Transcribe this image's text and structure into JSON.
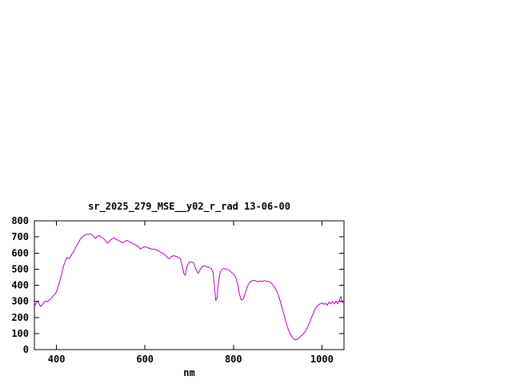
{
  "window": {
    "background": "#ffffff"
  },
  "chart_data": {
    "type": "line",
    "title": "sr_2025_279_MSE__y02_r_rad 13-06-00",
    "xlabel": "nm",
    "ylabel": "",
    "xlim": [
      350,
      1050
    ],
    "ylim": [
      0,
      800
    ],
    "x_ticks": [
      400,
      600,
      800,
      1000
    ],
    "y_ticks": [
      0,
      100,
      200,
      300,
      400,
      500,
      600,
      700,
      800
    ],
    "grid": false,
    "legend": "none",
    "line_color": "#bb00bb",
    "axis_color": "#000000",
    "series": [
      {
        "name": "sr_2025_279_MSE__y02_r_rad",
        "points": [
          [
            350,
            265
          ],
          [
            353,
            285
          ],
          [
            356,
            300
          ],
          [
            360,
            288
          ],
          [
            364,
            268
          ],
          [
            368,
            280
          ],
          [
            372,
            295
          ],
          [
            376,
            302
          ],
          [
            380,
            298
          ],
          [
            384,
            308
          ],
          [
            388,
            318
          ],
          [
            392,
            332
          ],
          [
            396,
            344
          ],
          [
            400,
            360
          ],
          [
            404,
            395
          ],
          [
            408,
            432
          ],
          [
            412,
            475
          ],
          [
            416,
            520
          ],
          [
            420,
            552
          ],
          [
            424,
            572
          ],
          [
            428,
            563
          ],
          [
            432,
            580
          ],
          [
            436,
            600
          ],
          [
            440,
            615
          ],
          [
            444,
            638
          ],
          [
            448,
            658
          ],
          [
            452,
            678
          ],
          [
            456,
            694
          ],
          [
            460,
            704
          ],
          [
            464,
            711
          ],
          [
            468,
            717
          ],
          [
            472,
            714
          ],
          [
            476,
            720
          ],
          [
            480,
            714
          ],
          [
            484,
            701
          ],
          [
            488,
            690
          ],
          [
            492,
            704
          ],
          [
            496,
            709
          ],
          [
            500,
            699
          ],
          [
            505,
            694
          ],
          [
            510,
            679
          ],
          [
            515,
            661
          ],
          [
            520,
            674
          ],
          [
            525,
            688
          ],
          [
            530,
            694
          ],
          [
            535,
            684
          ],
          [
            540,
            679
          ],
          [
            545,
            669
          ],
          [
            550,
            664
          ],
          [
            555,
            673
          ],
          [
            560,
            679
          ],
          [
            565,
            669
          ],
          [
            570,
            664
          ],
          [
            575,
            654
          ],
          [
            580,
            649
          ],
          [
            585,
            639
          ],
          [
            590,
            624
          ],
          [
            595,
            634
          ],
          [
            600,
            639
          ],
          [
            605,
            634
          ],
          [
            610,
            629
          ],
          [
            615,
            624
          ],
          [
            620,
            624
          ],
          [
            625,
            619
          ],
          [
            630,
            614
          ],
          [
            635,
            604
          ],
          [
            640,
            599
          ],
          [
            645,
            589
          ],
          [
            650,
            574
          ],
          [
            655,
            564
          ],
          [
            660,
            579
          ],
          [
            665,
            584
          ],
          [
            670,
            579
          ],
          [
            675,
            574
          ],
          [
            680,
            565
          ],
          [
            685,
            510
          ],
          [
            688,
            470
          ],
          [
            691,
            462
          ],
          [
            695,
            515
          ],
          [
            700,
            543
          ],
          [
            705,
            545
          ],
          [
            710,
            538
          ],
          [
            715,
            500
          ],
          [
            720,
            474
          ],
          [
            725,
            498
          ],
          [
            730,
            518
          ],
          [
            735,
            520
          ],
          [
            740,
            514
          ],
          [
            745,
            510
          ],
          [
            750,
            504
          ],
          [
            754,
            478
          ],
          [
            757,
            395
          ],
          [
            760,
            305
          ],
          [
            763,
            318
          ],
          [
            766,
            420
          ],
          [
            770,
            480
          ],
          [
            774,
            497
          ],
          [
            778,
            504
          ],
          [
            782,
            502
          ],
          [
            786,
            498
          ],
          [
            790,
            494
          ],
          [
            795,
            481
          ],
          [
            800,
            470
          ],
          [
            805,
            450
          ],
          [
            810,
            402
          ],
          [
            814,
            340
          ],
          [
            818,
            308
          ],
          [
            822,
            312
          ],
          [
            826,
            345
          ],
          [
            830,
            382
          ],
          [
            835,
            412
          ],
          [
            840,
            425
          ],
          [
            845,
            430
          ],
          [
            850,
            428
          ],
          [
            855,
            422
          ],
          [
            860,
            427
          ],
          [
            865,
            423
          ],
          [
            870,
            429
          ],
          [
            875,
            424
          ],
          [
            880,
            424
          ],
          [
            885,
            414
          ],
          [
            890,
            400
          ],
          [
            895,
            379
          ],
          [
            900,
            349
          ],
          [
            905,
            309
          ],
          [
            910,
            259
          ],
          [
            915,
            209
          ],
          [
            920,
            159
          ],
          [
            925,
            118
          ],
          [
            930,
            89
          ],
          [
            935,
            70
          ],
          [
            940,
            59
          ],
          [
            944,
            64
          ],
          [
            948,
            73
          ],
          [
            952,
            82
          ],
          [
            956,
            93
          ],
          [
            960,
            104
          ],
          [
            964,
            121
          ],
          [
            968,
            143
          ],
          [
            972,
            168
          ],
          [
            976,
            196
          ],
          [
            980,
            222
          ],
          [
            984,
            248
          ],
          [
            988,
            266
          ],
          [
            992,
            277
          ],
          [
            996,
            284
          ],
          [
            1000,
            291
          ],
          [
            1004,
            281
          ],
          [
            1008,
            287
          ],
          [
            1012,
            276
          ],
          [
            1016,
            295
          ],
          [
            1020,
            284
          ],
          [
            1024,
            299
          ],
          [
            1028,
            283
          ],
          [
            1032,
            301
          ],
          [
            1036,
            284
          ],
          [
            1040,
            312
          ],
          [
            1043,
            330
          ],
          [
            1046,
            292
          ],
          [
            1050,
            302
          ]
        ]
      }
    ]
  }
}
